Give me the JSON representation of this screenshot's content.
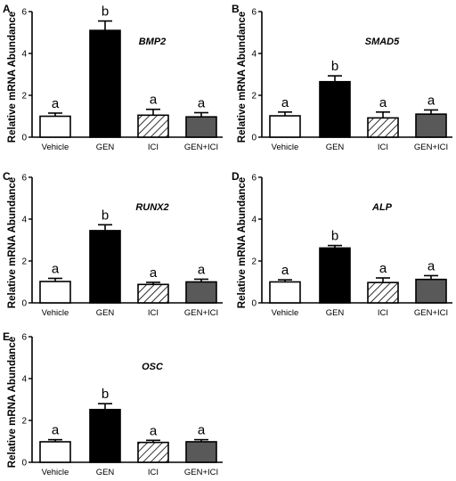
{
  "chart_data": [
    {
      "type": "bar",
      "panel": "A",
      "title": "BMP2",
      "ylabel": "Relative mRNA Abundance",
      "ylim": [
        0,
        6
      ],
      "yticks": [
        0,
        2,
        4,
        6
      ],
      "categories": [
        "Vehicle",
        "GEN",
        "ICI",
        "GEN+ICI"
      ],
      "values": [
        1.0,
        5.1,
        1.05,
        0.97
      ],
      "errors": [
        0.15,
        0.45,
        0.28,
        0.2
      ],
      "significance": [
        "a",
        "b",
        "a",
        "a"
      ],
      "fills": [
        "white",
        "black",
        "hatched",
        "gray"
      ]
    },
    {
      "type": "bar",
      "panel": "B",
      "title": "SMAD5",
      "ylabel": "Relative mRNA Abundance",
      "ylim": [
        0,
        6
      ],
      "yticks": [
        0,
        2,
        4,
        6
      ],
      "categories": [
        "Vehicle",
        "GEN",
        "ICI",
        "GEN+ICI"
      ],
      "values": [
        1.02,
        2.65,
        0.92,
        1.1
      ],
      "errors": [
        0.18,
        0.28,
        0.28,
        0.2
      ],
      "significance": [
        "a",
        "b",
        "a",
        "a"
      ],
      "fills": [
        "white",
        "black",
        "hatched",
        "gray"
      ]
    },
    {
      "type": "bar",
      "panel": "C",
      "title": "RUNX2",
      "ylabel": "Relative mRNA Abundance",
      "ylim": [
        0,
        6
      ],
      "yticks": [
        0,
        2,
        4,
        6
      ],
      "categories": [
        "Vehicle",
        "GEN",
        "ICI",
        "GEN+ICI"
      ],
      "values": [
        1.02,
        3.45,
        0.88,
        1.0
      ],
      "errors": [
        0.15,
        0.28,
        0.1,
        0.13
      ],
      "significance": [
        "a",
        "b",
        "a",
        "a"
      ],
      "fills": [
        "white",
        "black",
        "hatched",
        "gray"
      ]
    },
    {
      "type": "bar",
      "panel": "D",
      "title": "ALP",
      "ylabel": "Relative mRNA Abundance",
      "ylim": [
        0,
        6
      ],
      "yticks": [
        0,
        2,
        4,
        6
      ],
      "categories": [
        "Vehicle",
        "GEN",
        "ICI",
        "GEN+ICI"
      ],
      "values": [
        1.0,
        2.62,
        0.97,
        1.12
      ],
      "errors": [
        0.1,
        0.12,
        0.22,
        0.18
      ],
      "significance": [
        "a",
        "b",
        "a",
        "a"
      ],
      "fills": [
        "white",
        "black",
        "hatched",
        "gray"
      ]
    },
    {
      "type": "bar",
      "panel": "E",
      "title": "OSC",
      "ylabel": "Relative mRNA Abundance",
      "ylim": [
        0,
        6
      ],
      "yticks": [
        0,
        2,
        4,
        6
      ],
      "categories": [
        "Vehicle",
        "GEN",
        "ICI",
        "GEN+ICI"
      ],
      "values": [
        0.98,
        2.52,
        0.95,
        0.98
      ],
      "errors": [
        0.1,
        0.28,
        0.1,
        0.1
      ],
      "significance": [
        "a",
        "b",
        "a",
        "a"
      ],
      "fills": [
        "white",
        "black",
        "hatched",
        "gray"
      ]
    }
  ],
  "colors": {
    "white": "#ffffff",
    "black": "#000000",
    "gray": "#595959",
    "axis": "#000000"
  }
}
